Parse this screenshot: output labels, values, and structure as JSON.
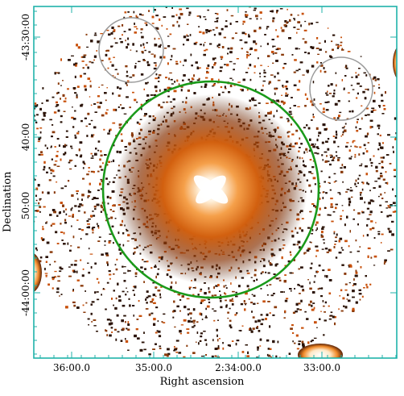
{
  "image": {
    "x_axis_label": "Right ascension",
    "y_axis_label": "Declination",
    "x_tick_labels": [
      "36:00.0",
      "35:00.0",
      "2:34:00.0",
      "33:00.0"
    ],
    "y_tick_labels": [
      "-43:30:00",
      "40:00",
      "50:00",
      "-44:00:00"
    ],
    "colors": {
      "frame": "#20b2aa",
      "source_circle": "#1a9a1a",
      "region_circles": "#9a9a9a",
      "emission_dark": "#2a1206",
      "emission_mid": "#c8500a",
      "emission_bright": "#ffffff"
    }
  }
}
